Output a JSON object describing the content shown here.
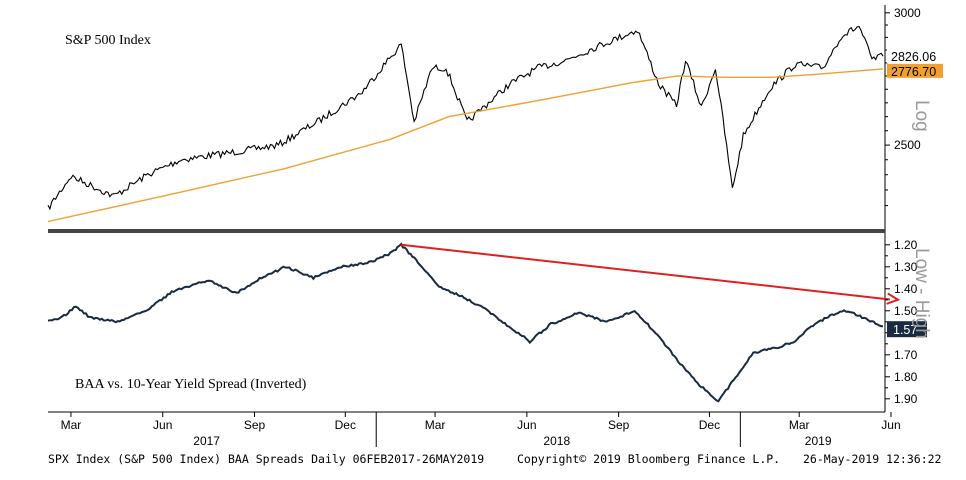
{
  "footer": {
    "left": "SPX Index (S&P 500 Index) BAA Spreads  Daily 06FEB2017-26MAY2019",
    "center": "Copyright© 2019 Bloomberg Finance L.P.",
    "right": "26-May-2019 12:36:22"
  },
  "chart_data": [
    {
      "type": "line",
      "title": "S&P 500 Index",
      "scale": "log",
      "axis_label": "Log",
      "yticks": [
        2500,
        3000
      ],
      "ylim": [
        2230,
        3020
      ],
      "x_range": [
        "2017-02-06",
        "2019-05-26"
      ],
      "last_value_labels": [
        "2826.06",
        "2776.70"
      ],
      "colors": {
        "price": "#000000",
        "moving_average": "#f0a030",
        "last_price_box": "#ffffff",
        "last_ma_box": "#f0a030"
      },
      "series": [
        {
          "key": "price",
          "x": [
            "2017-02-06",
            "2017-03-01",
            "2017-04-13",
            "2017-05-17",
            "2017-06-19",
            "2017-08-10",
            "2017-09-25",
            "2017-11-07",
            "2017-12-18",
            "2018-01-26",
            "2018-02-08",
            "2018-02-26",
            "2018-03-12",
            "2018-04-02",
            "2018-05-15",
            "2018-06-12",
            "2018-07-10",
            "2018-08-07",
            "2018-09-20",
            "2018-10-11",
            "2018-10-29",
            "2018-11-07",
            "2018-11-23",
            "2018-12-07",
            "2018-12-24",
            "2019-01-04",
            "2019-01-31",
            "2019-02-25",
            "2019-03-25",
            "2019-04-12",
            "2019-04-30",
            "2019-05-13",
            "2019-05-24"
          ],
          "y": [
            2290,
            2395,
            2330,
            2400,
            2450,
            2475,
            2500,
            2590,
            2690,
            2872,
            2580,
            2780,
            2780,
            2580,
            2720,
            2780,
            2810,
            2858,
            2930,
            2720,
            2640,
            2810,
            2632,
            2780,
            2351,
            2532,
            2705,
            2795,
            2780,
            2905,
            2945,
            2812,
            2826
          ]
        },
        {
          "key": "moving_average",
          "x": [
            "2017-02-06",
            "2017-06-01",
            "2017-10-01",
            "2018-01-15",
            "2018-03-15",
            "2018-06-15",
            "2018-09-15",
            "2018-10-30",
            "2018-12-15",
            "2019-02-01",
            "2019-03-15",
            "2019-05-24"
          ],
          "y": [
            2250,
            2330,
            2420,
            2520,
            2600,
            2660,
            2725,
            2750,
            2745,
            2745,
            2755,
            2777
          ]
        }
      ]
    },
    {
      "type": "line",
      "title": "BAA vs. 10-Year Yield Spread (Inverted)",
      "inverted": true,
      "axis_label": "Low - High",
      "yticks": [
        1.2,
        1.3,
        1.4,
        1.5,
        1.6,
        1.7,
        1.8,
        1.9
      ],
      "ytick_labels": [
        "1.20",
        "1.30",
        "1.40",
        "1.50",
        "1.60",
        "1.70",
        "1.80",
        "1.90"
      ],
      "ylim": [
        1.16,
        1.96
      ],
      "x_range": [
        "2017-02-06",
        "2019-05-26"
      ],
      "last_value_label": "1.57",
      "colors": {
        "spread": "#1a2a40",
        "trend_arrow": "#e02020",
        "last_value_box": "#1a2a40"
      },
      "series": [
        {
          "key": "spread",
          "x": [
            "2017-02-06",
            "2017-02-20",
            "2017-03-06",
            "2017-03-20",
            "2017-04-17",
            "2017-05-15",
            "2017-06-12",
            "2017-07-17",
            "2017-08-14",
            "2017-09-04",
            "2017-10-02",
            "2017-10-30",
            "2017-11-27",
            "2017-12-25",
            "2018-01-15",
            "2018-01-26",
            "2018-02-12",
            "2018-03-05",
            "2018-03-26",
            "2018-04-16",
            "2018-05-14",
            "2018-06-04",
            "2018-06-25",
            "2018-07-23",
            "2018-08-20",
            "2018-09-17",
            "2018-10-08",
            "2018-10-29",
            "2018-11-19",
            "2018-12-10",
            "2018-12-31",
            "2019-01-14",
            "2019-02-04",
            "2019-02-25",
            "2019-03-11",
            "2019-04-01",
            "2019-04-15",
            "2019-04-29",
            "2019-05-13",
            "2019-05-24"
          ],
          "y": [
            1.55,
            1.53,
            1.48,
            1.53,
            1.55,
            1.5,
            1.41,
            1.36,
            1.42,
            1.36,
            1.3,
            1.35,
            1.3,
            1.28,
            1.24,
            1.2,
            1.28,
            1.39,
            1.43,
            1.48,
            1.57,
            1.64,
            1.56,
            1.51,
            1.55,
            1.5,
            1.6,
            1.72,
            1.83,
            1.91,
            1.78,
            1.69,
            1.67,
            1.64,
            1.58,
            1.52,
            1.5,
            1.52,
            1.55,
            1.57
          ]
        }
      ],
      "annotations": [
        {
          "type": "arrow",
          "from": {
            "x": "2018-01-26",
            "y": 1.2
          },
          "to": {
            "x": "2019-06-08",
            "y": 1.45
          },
          "color": "#e02020"
        }
      ]
    }
  ],
  "x_axis": {
    "month_ticks": [
      {
        "label": "Mar",
        "date": "2017-03-01"
      },
      {
        "label": "Jun",
        "date": "2017-06-01"
      },
      {
        "label": "Sep",
        "date": "2017-09-01"
      },
      {
        "label": "Dec",
        "date": "2017-12-01"
      },
      {
        "label": "Mar",
        "date": "2018-03-01"
      },
      {
        "label": "Jun",
        "date": "2018-06-01"
      },
      {
        "label": "Sep",
        "date": "2018-09-01"
      },
      {
        "label": "Dec",
        "date": "2018-12-01"
      },
      {
        "label": "Mar",
        "date": "2019-03-01"
      },
      {
        "label": "Jun",
        "date": "2019-06-01"
      }
    ],
    "year_ticks": [
      {
        "label": "2017",
        "date": "2017-07-15"
      },
      {
        "label": "2018",
        "date": "2018-07-01"
      },
      {
        "label": "2019",
        "date": "2019-03-20"
      }
    ],
    "year_boundaries": [
      "2018-01-01",
      "2019-01-01"
    ]
  }
}
